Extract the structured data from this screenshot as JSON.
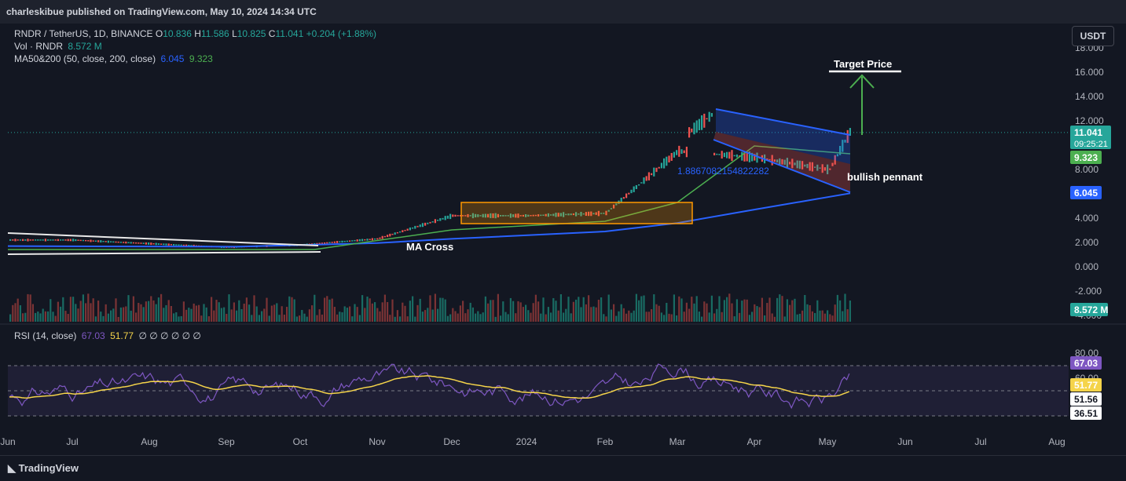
{
  "header": {
    "publisher": "charleskibue published on TradingView.com, May 10, 2024 14:34 UTC"
  },
  "legend": {
    "symbol": "RNDR / TetherUS, 1D, BINANCE",
    "ohlc": [
      {
        "label": "O",
        "value": "10.836"
      },
      {
        "label": "H",
        "value": "11.586"
      },
      {
        "label": "L",
        "value": "10.825"
      },
      {
        "label": "C",
        "value": "11.041"
      }
    ],
    "change": "+0.204 (+1.88%)",
    "volume_label": "Vol · RNDR",
    "volume_value": "8.572 M",
    "ma_label": "MA50&200 (50, close, 200, close)",
    "ma50_value": "6.045",
    "ma200_value": "9.323",
    "rsi_label": "RSI (14, close)",
    "rsi_value": "67.03",
    "rsi_ma_value": "51.77",
    "rsi_extra": "∅ ∅ ∅ ∅ ∅ ∅"
  },
  "toolbar": {
    "currency_button": "USDT"
  },
  "footer": {
    "brand": "TradingView"
  },
  "colors": {
    "background": "#131722",
    "up": "#26a69a",
    "down": "#ef5350",
    "ma50": "#2962ff",
    "ma_fast": "#4caf50",
    "rsi": "#7e57c2",
    "rsi_ma": "#f5d44a"
  },
  "chart_data": [
    {
      "type": "line",
      "title": "RNDR / TetherUS, 1D, BINANCE",
      "price_axis": [
        "18.000",
        "16.000",
        "14.000",
        "12.000",
        "10.000",
        "8.000",
        "6.000",
        "4.000",
        "2.000",
        "0.000",
        "-2.000",
        "-4.000"
      ],
      "ylim": [
        -4,
        18
      ],
      "time_axis": [
        "Jun",
        "Jul",
        "Aug",
        "Sep",
        "Oct",
        "Nov",
        "Dec",
        "2024",
        "Feb",
        "Mar",
        "Apr",
        "May",
        "Jun",
        "Jul",
        "Aug"
      ],
      "price_points": [
        {
          "date": "Jun",
          "price": 2.2
        },
        {
          "date": "Jul",
          "price": 2.2
        },
        {
          "date": "Aug",
          "price": 1.9
        },
        {
          "date": "Sep",
          "price": 1.6
        },
        {
          "date": "Oct",
          "price": 1.8
        },
        {
          "date": "Nov",
          "price": 2.3
        },
        {
          "date": "Dec",
          "price": 4.2
        },
        {
          "date": "2024",
          "price": 4.2
        },
        {
          "date": "Feb",
          "price": 4.4
        },
        {
          "date": "Mar",
          "price": 9.5
        },
        {
          "date": "Apr",
          "price": 9.0
        },
        {
          "date": "May",
          "price": 8.0
        }
      ],
      "last_price": {
        "value": "11.041",
        "countdown": "09:25:21"
      },
      "price_labels": [
        {
          "value": "9.323",
          "color": "#4caf50"
        },
        {
          "value": "6.045",
          "color": "#2962ff"
        },
        {
          "value": "8.572 M",
          "color": "#26a69a"
        }
      ],
      "annotations": [
        {
          "text": "Target Price"
        },
        {
          "text": "bullish pennant"
        },
        {
          "text": "MA Cross"
        },
        {
          "text": "1.8867082154822282"
        }
      ]
    },
    {
      "type": "line",
      "title": "RSI (14, close)",
      "ylim": [
        30,
        90
      ],
      "rsi_axis": [
        "80.00",
        "60.00"
      ],
      "rsi_labels": [
        {
          "value": "67.03",
          "color": "#7e57c2"
        },
        {
          "value": "51.77",
          "color": "#f5d44a"
        },
        {
          "value": "51.56",
          "color": "#ffffff"
        },
        {
          "value": "36.51",
          "color": "#ffffff"
        }
      ],
      "series": [
        {
          "name": "RSI",
          "color": "#7e57c2"
        },
        {
          "name": "RSI MA",
          "color": "#f5d44a"
        }
      ]
    }
  ]
}
